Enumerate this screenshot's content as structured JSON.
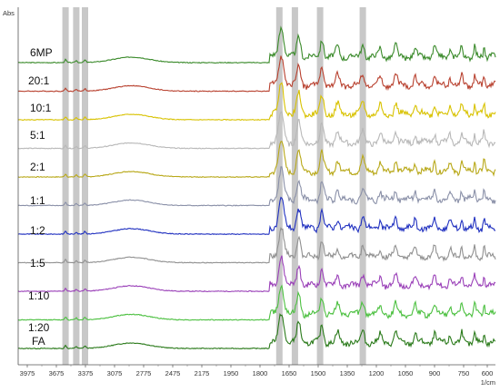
{
  "chart_data": {
    "type": "line",
    "ylabel": "Abs",
    "xlabel": "1/cm",
    "x_direction": "descending",
    "xlim": [
      3975,
      550
    ],
    "x_ticks": [
      "3975",
      "3675",
      "3375",
      "3075",
      "2775",
      "2475",
      "2175",
      "1950",
      "1800",
      "1650",
      "1500",
      "1350",
      "1200",
      "1050",
      "900",
      "750",
      "600"
    ],
    "y_ticks": "unlabeled",
    "grid": false,
    "legend": "labels placed at left beside each trace",
    "highlight_bands": [
      3580,
      3470,
      3380,
      1700,
      1620,
      1490,
      1270
    ],
    "highlight_color": "#c8c8c8",
    "series": [
      {
        "name": "6MP",
        "color": "#3a8a2a",
        "offset": 10
      },
      {
        "name": "20:1",
        "color": "#b8402e",
        "offset": 9
      },
      {
        "name": "10:1",
        "color": "#d8c200",
        "offset": 8
      },
      {
        "name": "5:1",
        "color": "#b8b8b8",
        "offset": 7
      },
      {
        "name": "2:1",
        "color": "#b8a818",
        "offset": 6
      },
      {
        "name": "1:1",
        "color": "#8a90a8",
        "offset": 5
      },
      {
        "name": "1:2",
        "color": "#2030c0",
        "offset": 4
      },
      {
        "name": "1:5",
        "color": "#909090",
        "offset": 3
      },
      {
        "name": "1:10",
        "color": "#9a40b8",
        "offset": 2
      },
      {
        "name": "1:20",
        "color": "#4cc040",
        "offset": 1
      },
      {
        "name": "FA",
        "color": "#2a7a1a",
        "offset": 0
      }
    ]
  }
}
